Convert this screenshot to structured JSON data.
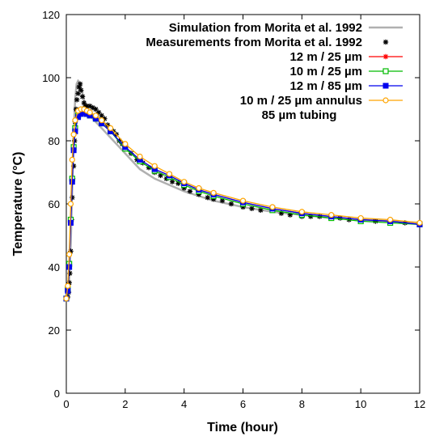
{
  "chart_data": {
    "type": "line",
    "title": "",
    "xlabel": "Time (hour)",
    "ylabel": "Temperature (°C)",
    "xlim": [
      0,
      12
    ],
    "ylim": [
      0,
      120
    ],
    "xticks": [
      0,
      2,
      4,
      6,
      8,
      10,
      12
    ],
    "yticks": [
      0,
      20,
      40,
      60,
      80,
      100,
      120
    ],
    "grid": false,
    "legend_position": "top-right",
    "series": [
      {
        "name": "Simulation from Morita et al. 1992",
        "color": "#b0b0b0",
        "marker": "none",
        "x": [
          0.0,
          0.05,
          0.1,
          0.15,
          0.2,
          0.25,
          0.3,
          0.35,
          0.4,
          0.45,
          0.5,
          0.55,
          0.6,
          0.7,
          0.8,
          1.0,
          1.2,
          1.4,
          1.6,
          1.8,
          2.0,
          2.5,
          3.0,
          3.5,
          4.0,
          5.0,
          6.0,
          7.0,
          8.0,
          9.0,
          10.0,
          11.0,
          12.0
        ],
        "y": [
          30,
          31,
          36,
          47,
          65,
          82,
          93,
          98,
          99,
          98.5,
          97,
          95,
          93,
          90,
          88,
          86,
          84,
          82,
          80,
          78,
          76,
          71,
          68,
          66,
          64,
          61,
          59,
          57.5,
          56.5,
          55.5,
          55,
          54.5,
          54
        ]
      },
      {
        "name": "Measurements from Morita et al. 1992",
        "color": "#000000",
        "marker": "asterisk",
        "x": [
          0.0,
          0.05,
          0.08,
          0.1,
          0.12,
          0.15,
          0.18,
          0.2,
          0.22,
          0.25,
          0.28,
          0.3,
          0.33,
          0.36,
          0.4,
          0.43,
          0.47,
          0.5,
          0.55,
          0.6,
          0.65,
          0.7,
          0.8,
          0.9,
          1.0,
          1.1,
          1.2,
          1.3,
          1.4,
          1.5,
          1.6,
          1.7,
          1.8,
          1.9,
          2.0,
          2.2,
          2.4,
          2.6,
          2.8,
          3.0,
          3.2,
          3.4,
          3.6,
          3.8,
          4.0,
          4.2,
          4.5,
          4.8,
          5.0,
          5.3,
          5.6,
          6.0,
          6.3,
          6.6,
          7.0,
          7.3,
          7.6,
          8.0,
          8.3,
          8.6,
          9.0,
          9.3,
          9.6,
          10.0,
          10.5,
          11.0,
          11.5,
          12.0
        ],
        "y": [
          30,
          30.5,
          32,
          35,
          38,
          45,
          55,
          62,
          68,
          72,
          80,
          86,
          90,
          93,
          95,
          97,
          98,
          96,
          94,
          92,
          91,
          91,
          91,
          90.5,
          90,
          89,
          88,
          87,
          85,
          84,
          83,
          82,
          80,
          79,
          77.5,
          76,
          74,
          73,
          71.5,
          70,
          69,
          68,
          67,
          66.5,
          65,
          64,
          63,
          62,
          61.5,
          61,
          60,
          59,
          58.5,
          58,
          58,
          57,
          56.5,
          56,
          56,
          56,
          56,
          55.5,
          55,
          55,
          54.5,
          54,
          54,
          53.5
        ]
      },
      {
        "name": "12 m / 25 µm",
        "color": "#ff0000",
        "marker": "asterisk",
        "x": [
          0.0,
          0.05,
          0.1,
          0.15,
          0.2,
          0.25,
          0.3,
          0.4,
          0.5,
          0.6,
          0.7,
          0.8,
          1.0,
          1.2,
          1.5,
          2.0,
          2.5,
          3.0,
          3.5,
          4.0,
          4.5,
          5.0,
          6.0,
          7.0,
          8.0,
          9.0,
          10.0,
          11.0,
          12.0
        ],
        "y": [
          30,
          33,
          41,
          55,
          68,
          78,
          84,
          88,
          89,
          89,
          88.5,
          88,
          87,
          85.5,
          83,
          78,
          74,
          71,
          69,
          66.5,
          64.5,
          63,
          60.5,
          58.5,
          57,
          56,
          55,
          54.5,
          53.5
        ]
      },
      {
        "name": "10 m / 25 µm",
        "color": "#00bb00",
        "marker": "square-open",
        "x": [
          0.0,
          0.05,
          0.1,
          0.15,
          0.2,
          0.25,
          0.3,
          0.4,
          0.5,
          0.6,
          0.7,
          0.8,
          1.0,
          1.2,
          1.5,
          2.0,
          2.5,
          3.0,
          3.5,
          4.0,
          4.5,
          5.0,
          6.0,
          7.0,
          8.0,
          9.0,
          10.0,
          11.0,
          12.0
        ],
        "y": [
          30,
          33,
          41,
          55,
          68,
          78,
          84,
          88,
          89,
          89,
          88.5,
          88,
          87,
          85.5,
          83,
          77.5,
          73.5,
          70.5,
          68.5,
          66,
          64,
          62.5,
          60,
          58,
          56.5,
          55.5,
          54.5,
          54,
          53.5
        ]
      },
      {
        "name": "12 m / 85 µm",
        "color": "#0000ee",
        "marker": "square-filled",
        "x": [
          0.0,
          0.05,
          0.1,
          0.15,
          0.2,
          0.25,
          0.3,
          0.4,
          0.5,
          0.6,
          0.7,
          0.8,
          1.0,
          1.2,
          1.5,
          2.0,
          2.5,
          3.0,
          3.5,
          4.0,
          4.5,
          5.0,
          6.0,
          7.0,
          8.0,
          9.0,
          10.0,
          11.0,
          12.0
        ],
        "y": [
          30,
          32.5,
          40,
          54,
          67,
          77,
          83,
          87.5,
          88.5,
          89,
          88.5,
          88,
          87,
          85.5,
          83,
          78,
          74,
          71,
          69,
          66.5,
          64.5,
          63,
          60.5,
          58.5,
          57,
          56,
          55,
          54.5,
          53.5
        ]
      },
      {
        "name": "10 m / 25 µm annulus",
        "color": "#ffa500",
        "marker": "circle-open",
        "x": [
          0.0,
          0.05,
          0.1,
          0.15,
          0.2,
          0.25,
          0.3,
          0.4,
          0.5,
          0.6,
          0.7,
          0.8,
          1.0,
          1.2,
          1.5,
          2.0,
          2.5,
          3.0,
          3.5,
          4.0,
          4.5,
          5.0,
          6.0,
          7.0,
          8.0,
          9.0,
          10.0,
          11.0,
          12.0
        ],
        "y": [
          30,
          34,
          44,
          60,
          74,
          82,
          86.5,
          89.5,
          90,
          90,
          89.5,
          89,
          88,
          86.5,
          84,
          79,
          75,
          72,
          69.5,
          67,
          65,
          63.5,
          61,
          59,
          57.5,
          56.5,
          55.5,
          55,
          54
        ]
      }
    ],
    "legend_extra_line": "85 µm tubing"
  }
}
